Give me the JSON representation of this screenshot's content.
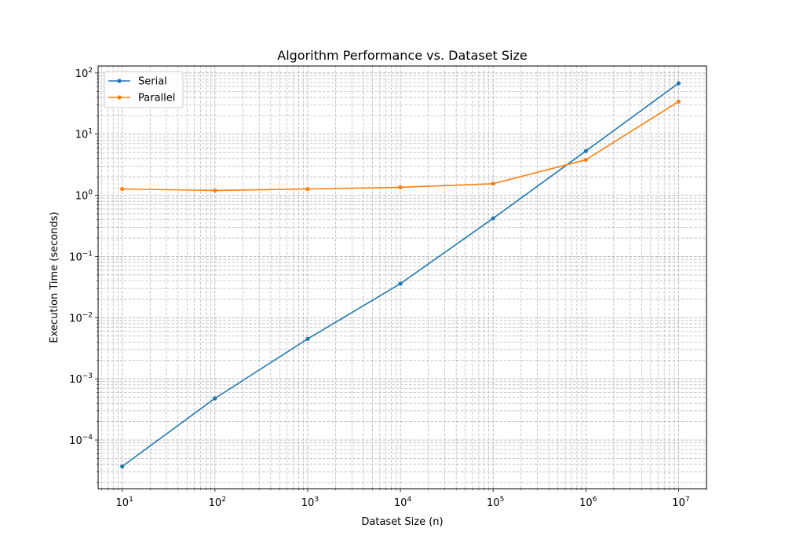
{
  "chart_data": {
    "type": "line",
    "title": "Algorithm Performance vs. Dataset Size",
    "xlabel": "Dataset Size (n)",
    "ylabel": "Execution Time (seconds)",
    "xscale": "log",
    "yscale": "log",
    "xlim": [
      5.5,
      20000000
    ],
    "ylim": [
      1.6e-05,
      130
    ],
    "x_ticks": [
      {
        "value": 10,
        "base": "10",
        "exp": "1"
      },
      {
        "value": 100,
        "base": "10",
        "exp": "2"
      },
      {
        "value": 1000,
        "base": "10",
        "exp": "3"
      },
      {
        "value": 10000,
        "base": "10",
        "exp": "4"
      },
      {
        "value": 100000,
        "base": "10",
        "exp": "5"
      },
      {
        "value": 1000000,
        "base": "10",
        "exp": "6"
      },
      {
        "value": 10000000,
        "base": "10",
        "exp": "7"
      }
    ],
    "y_ticks": [
      {
        "value": 0.0001,
        "base": "10",
        "exp": "−4"
      },
      {
        "value": 0.001,
        "base": "10",
        "exp": "−3"
      },
      {
        "value": 0.01,
        "base": "10",
        "exp": "−2"
      },
      {
        "value": 0.1,
        "base": "10",
        "exp": "−1"
      },
      {
        "value": 1,
        "base": "10",
        "exp": "0"
      },
      {
        "value": 10,
        "base": "10",
        "exp": "1"
      },
      {
        "value": 100,
        "base": "10",
        "exp": "2"
      }
    ],
    "grid": true,
    "grid_minor": true,
    "legend_position": "upper-left",
    "x": [
      10,
      100,
      1000,
      10000,
      100000,
      1000000,
      10000000
    ],
    "series": [
      {
        "name": "Serial",
        "color": "#1f77b4",
        "values": [
          3.7e-05,
          0.00048,
          0.0045,
          0.036,
          0.42,
          5.3,
          68
        ]
      },
      {
        "name": "Parallel",
        "color": "#ff7f0e",
        "values": [
          1.27,
          1.2,
          1.27,
          1.35,
          1.55,
          3.8,
          34
        ]
      }
    ]
  }
}
